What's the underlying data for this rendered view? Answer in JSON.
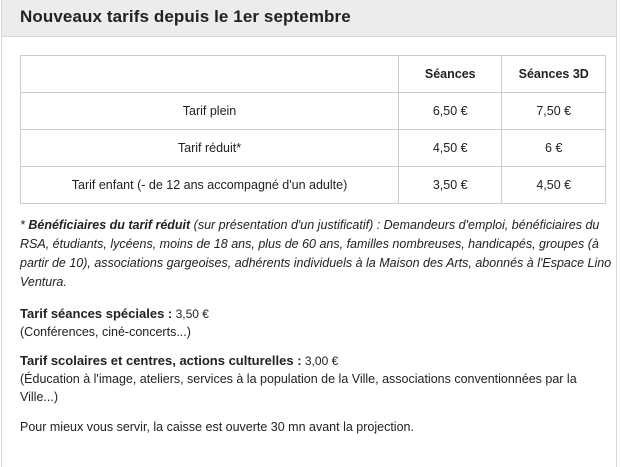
{
  "header": {
    "title": "Nouveaux tarifs depuis le 1er septembre"
  },
  "table": {
    "columns": [
      "",
      "Séances",
      "Séances 3D"
    ],
    "rows": [
      {
        "label": "Tarif plein",
        "seances": "6,50 €",
        "seances3d": "7,50 €"
      },
      {
        "label": "Tarif réduit*",
        "seances": "4,50 €",
        "seances3d": "6 €"
      },
      {
        "label": "Tarif enfant (- de 12 ans accompagné d'un adulte)",
        "seances": "3,50 €",
        "seances3d": "4,50 €"
      }
    ]
  },
  "note": {
    "prefix": "* ",
    "bold": "Bénéficiaires du tarif réduit",
    "text": " (sur présentation d'un justificatif) : Demandeurs d'emploi, bénéficiaires du RSA, étudiants, lycéens, moins de 18 ans, plus de 60 ans, familles nombreuses, handicapés, groupes (à partir de 10), associations gargeoises, adhérents individuels à la Maison des Arts, abonnés à l'Espace Lino Ventura."
  },
  "special": {
    "label": "Tarif séances spéciales :",
    "value": " 3,50 €",
    "detail": "(Conférences, ciné-concerts...)"
  },
  "scolaires": {
    "label": "Tarif scolaires et centres, actions culturelles :",
    "value": " 3,00 €",
    "detail": "(Éducation à l'image, ateliers, services à la population de la Ville, associations conventionnées par la Ville...)"
  },
  "footer": {
    "text": "Pour mieux vous servir, la caisse est ouverte 30 mn avant la projection."
  }
}
